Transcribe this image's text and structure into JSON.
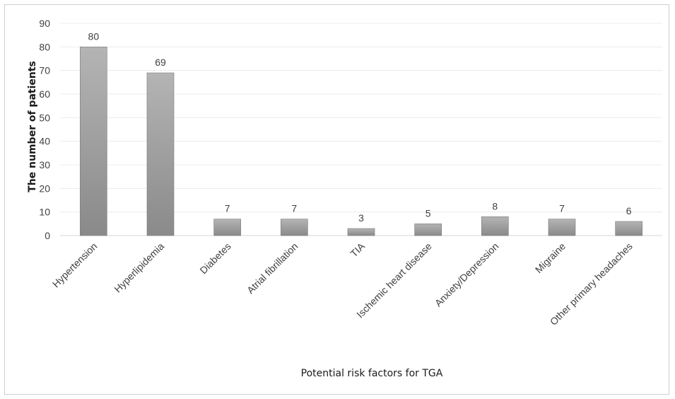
{
  "chart_data": {
    "type": "bar",
    "title": "",
    "xlabel": "Potential risk factors for TGA",
    "ylabel": "The number of patients",
    "categories": [
      "Hypertension",
      "Hyperlipidemia",
      "Diabetes",
      "Atrial fibrillation",
      "TIA",
      "Ischemic heart disease",
      "Anxiety/Depression",
      "Migraine",
      "Other primary headaches"
    ],
    "values": [
      80,
      69,
      7,
      7,
      3,
      5,
      8,
      7,
      6
    ],
    "ylim": [
      0,
      90
    ],
    "yticks": [
      0,
      10,
      20,
      30,
      40,
      50,
      60,
      70,
      80,
      90
    ],
    "grid": true,
    "legend": "none",
    "bar_color": "#9a9a9a"
  }
}
